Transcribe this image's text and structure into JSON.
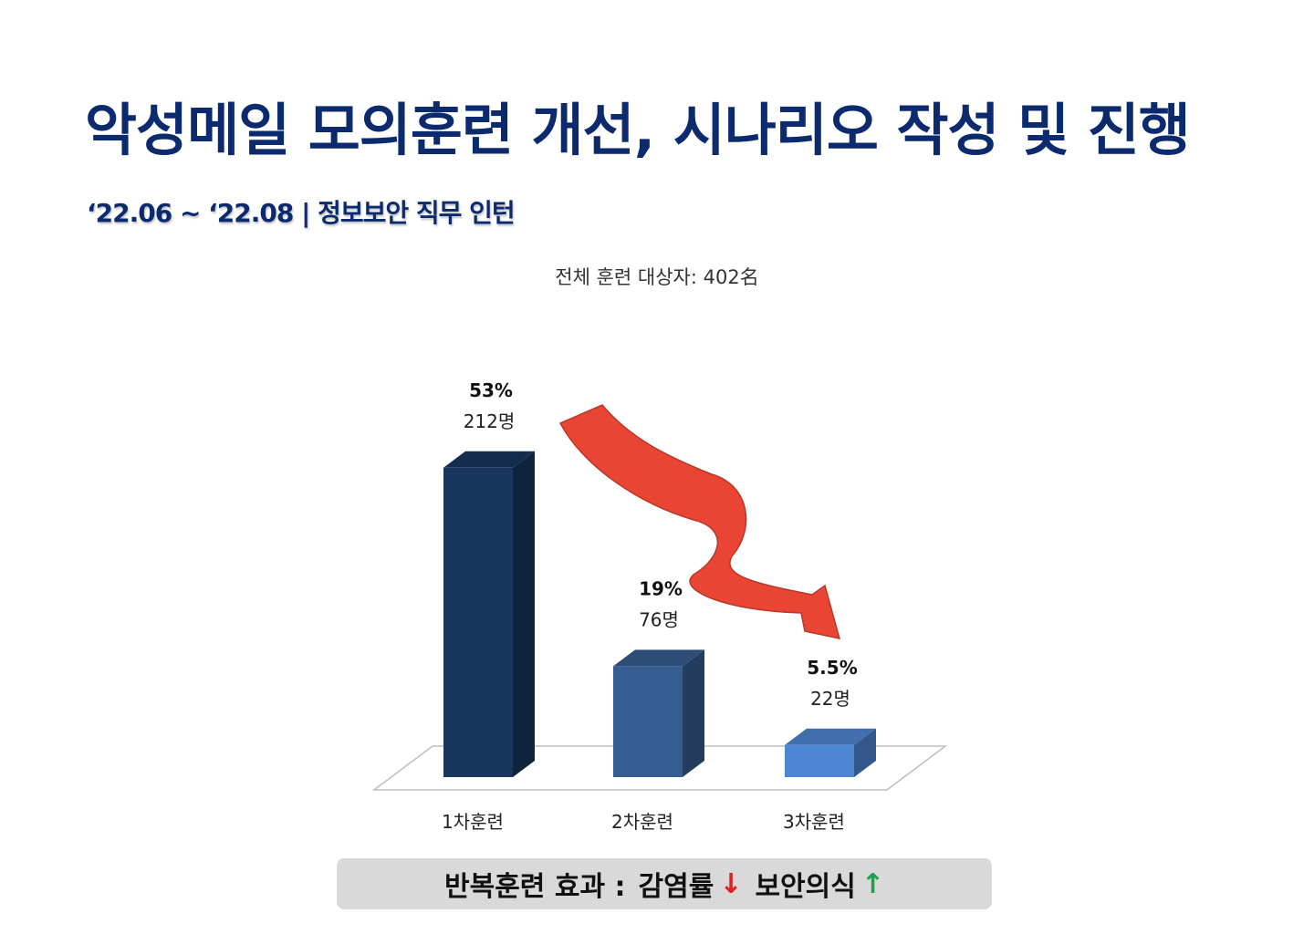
{
  "page": {
    "title": "악성메일 모의훈련 개선, 시나리오 작성 및 진행",
    "subtitle": "‘22.06 ~ ‘22.08 | 정보보안 직무 인턴"
  },
  "chart_data": {
    "type": "bar",
    "title": "전체 훈련 대상자: 402名",
    "categories": [
      "1차훈련",
      "2차훈련",
      "3차훈련"
    ],
    "series": [
      {
        "values": [
          212,
          76,
          22
        ],
        "percent_labels": [
          "53%",
          "19%",
          "5.5%"
        ],
        "count_labels": [
          "212명",
          "76명",
          "22명"
        ],
        "colors": [
          "#18365e",
          "#375e92",
          "#4f86d3"
        ]
      }
    ],
    "ylim": [
      0,
      240
    ],
    "three_d": true,
    "trend_arrow": "down",
    "trend_arrow_color": "#e84535"
  },
  "summary": {
    "label": "반복훈련 효과 :",
    "infection": "감염률",
    "down_arrow": "↓",
    "awareness": "보안의식",
    "up_arrow": "↑"
  }
}
